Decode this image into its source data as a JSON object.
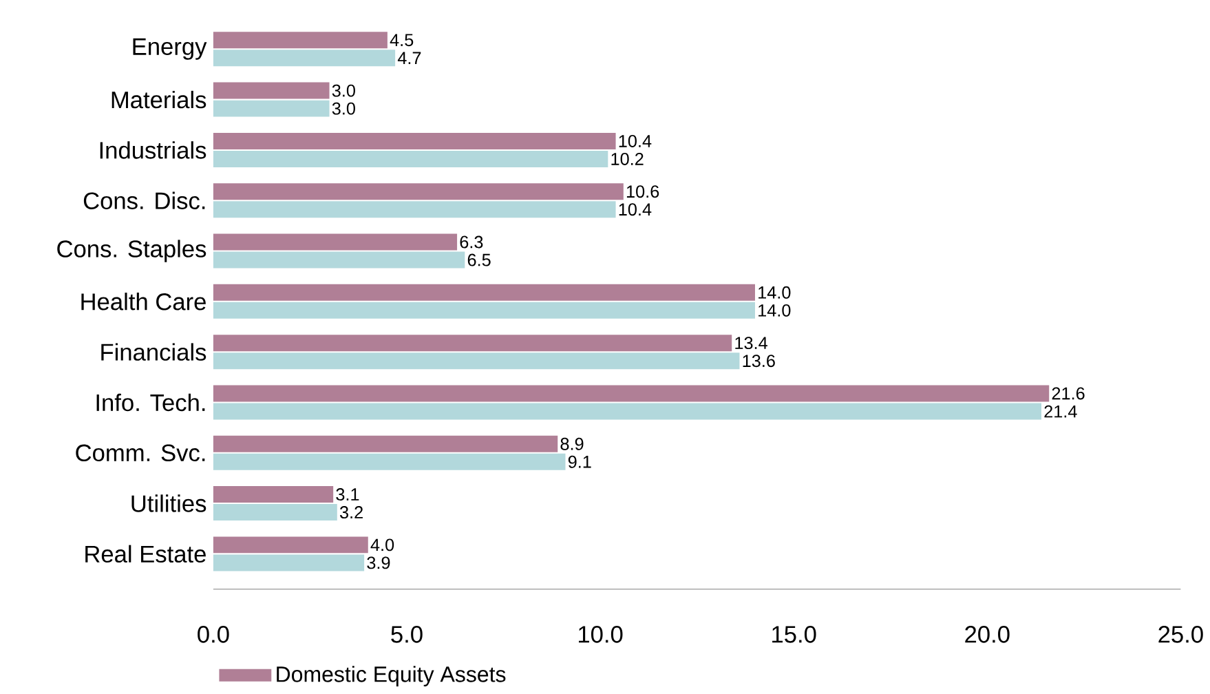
{
  "chart_data": {
    "type": "bar",
    "orientation": "horizontal",
    "categories": [
      "Energy",
      "Materials",
      "Industrials",
      "Cons. Disc.",
      "Cons. Staples",
      "Health Care",
      "Financials",
      "Info. Tech.",
      "Comm. Svc.",
      "Utilities",
      "Real Estate"
    ],
    "series": [
      {
        "name": "Domestic Equity Assets",
        "color": "#b07f96",
        "values": [
          4.5,
          3.0,
          10.4,
          10.6,
          6.3,
          14.0,
          13.4,
          21.6,
          8.9,
          3.1,
          4.0
        ],
        "value_labels": [
          "4.5",
          "3.0",
          "10.4",
          "10.6",
          "6.3",
          "14.0",
          "13.4",
          "21.6",
          "8.9",
          "3.1",
          "4.0"
        ]
      },
      {
        "color": "#b2d8dc",
        "values": [
          4.7,
          3.0,
          10.2,
          10.4,
          6.5,
          14.0,
          13.6,
          21.4,
          9.1,
          3.2,
          3.9
        ],
        "value_labels": [
          "4.7",
          "3.0",
          "10.2",
          "10.4",
          "6.5",
          "14.0",
          "13.6",
          "21.4",
          "9.1",
          "3.2",
          "3.9"
        ]
      }
    ],
    "xlim": [
      0,
      25
    ],
    "xticks": [
      {
        "value": 0,
        "label": "0.0"
      },
      {
        "value": 5,
        "label": "5.0"
      },
      {
        "value": 10,
        "label": "10.0"
      },
      {
        "value": 15,
        "label": "15.0"
      },
      {
        "value": 20,
        "label": "20.0"
      },
      {
        "value": 25,
        "label": "25.0"
      }
    ],
    "grid": false,
    "legend": "bottom"
  }
}
